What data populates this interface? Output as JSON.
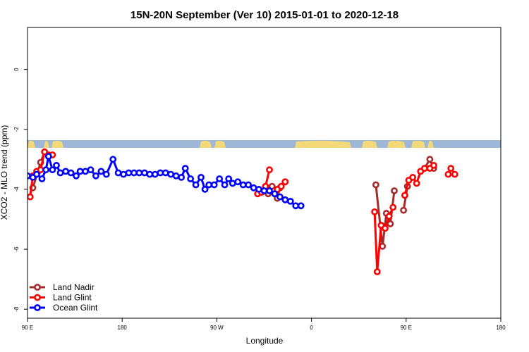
{
  "chart_data": {
    "type": "line",
    "title": "15N-20N September (Ver 10)   2015-01-01 to 2020-12-18",
    "xlabel": "Longitude",
    "ylabel": "XCO2 - MLO trend (ppm)",
    "xlim": [
      90,
      450
    ],
    "ylim": [
      -8.3,
      1.4
    ],
    "x_ticks": [
      {
        "value": 90,
        "label": "90 E"
      },
      {
        "value": 180,
        "label": "180"
      },
      {
        "value": 270,
        "label": "90 W"
      },
      {
        "value": 360,
        "label": "0"
      },
      {
        "value": 450,
        "label": "90 E"
      },
      {
        "value": 540,
        "label": "180"
      }
    ],
    "y_ticks": [
      {
        "value": 0,
        "label": "0"
      },
      {
        "value": -2,
        "label": "-2"
      },
      {
        "value": -4,
        "label": "-4"
      },
      {
        "value": -6,
        "label": "-6"
      },
      {
        "value": -8,
        "label": "-8"
      }
    ],
    "legend_position": "bottom-left",
    "grid": false,
    "series": [
      {
        "name": "Land Nadir",
        "color": "#a52a2a",
        "segments": [
          [
            [
              94,
              -3.95
            ],
            [
              98,
              -3.4
            ],
            [
              100,
              -3.1
            ],
            [
              103,
              -2.75
            ]
          ],
          [
            [
              273,
              -4.15
            ],
            [
              276,
              -3.9
            ]
          ],
          [
            [
              280,
              -4.3
            ],
            [
              282,
              -3.95
            ],
            [
              286,
              -3.75
            ]
          ],
          [
            [
              355,
              -3.85
            ],
            [
              360,
              -5.9
            ],
            [
              363,
              -4.8
            ],
            [
              366,
              -5.15
            ],
            [
              369,
              -4.05
            ]
          ],
          [
            [
              376,
              -4.7
            ],
            [
              379,
              -3.9
            ]
          ],
          [
            [
              392,
              -3.3
            ],
            [
              396,
              -3.0
            ],
            [
              399,
              -3.3
            ]
          ],
          [
            [
              462,
              -4.05
            ],
            [
              466,
              -4.45
            ],
            [
              469,
              -3.35
            ]
          ],
          [
            [
              478,
              -4.05
            ],
            [
              481,
              -3.45
            ],
            [
              484,
              -3.1
            ]
          ],
          [
            [
              492,
              -3.15
            ],
            [
              494,
              -3.3
            ]
          ]
        ]
      },
      {
        "name": "Land Glint",
        "color": "#ff0000",
        "segments": [
          [
            [
              92,
              -4.25
            ],
            [
              94,
              -3.55
            ],
            [
              97,
              -3.4
            ],
            [
              100,
              -3.35
            ],
            [
              103,
              -2.75
            ],
            [
              106,
              -2.85
            ],
            [
              109,
              -2.85
            ]
          ],
          [
            [
              265,
              -4.15
            ],
            [
              268,
              -4.1
            ],
            [
              271,
              -3.9
            ],
            [
              274,
              -3.35
            ]
          ],
          [
            [
              280,
              -4.0
            ],
            [
              283,
              -3.9
            ],
            [
              286,
              -3.75
            ]
          ],
          [
            [
              354,
              -4.75
            ],
            [
              356,
              -6.75
            ],
            [
              359,
              -5.2
            ],
            [
              362,
              -5.3
            ],
            [
              365,
              -4.9
            ],
            [
              368,
              -4.6
            ]
          ],
          [
            [
              377,
              -4.2
            ],
            [
              380,
              -3.7
            ],
            [
              383,
              -3.6
            ],
            [
              386,
              -3.8
            ],
            [
              389,
              -3.4
            ],
            [
              392,
              -3.3
            ]
          ],
          [
            [
              396,
              -3.3
            ],
            [
              399,
              -3.2
            ]
          ],
          [
            [
              410,
              -3.5
            ],
            [
              412,
              -3.3
            ],
            [
              415,
              -3.5
            ]
          ],
          [
            [
              474,
              -4.25
            ],
            [
              477,
              -3.6
            ],
            [
              480,
              -3.55
            ],
            [
              483,
              -3.4
            ],
            [
              486,
              -2.75
            ],
            [
              489,
              -2.9
            ]
          ],
          [
            [
              494,
              -3.15
            ],
            [
              496,
              -2.85
            ]
          ]
        ]
      },
      {
        "name": "Ocean Glint",
        "color": "#0000ff",
        "segments": [
          [
            [
              90,
              -3.55
            ],
            [
              94,
              -3.6
            ],
            [
              97,
              -3.5
            ],
            [
              101,
              -3.65
            ],
            [
              104,
              -3.35
            ],
            [
              106,
              -2.9
            ],
            [
              109,
              -3.35
            ],
            [
              112,
              -3.2
            ],
            [
              115,
              -3.45
            ],
            [
              119,
              -3.4
            ],
            [
              123,
              -3.45
            ],
            [
              127,
              -3.55
            ],
            [
              130,
              -3.4
            ],
            [
              134,
              -3.4
            ],
            [
              138,
              -3.35
            ],
            [
              142,
              -3.55
            ],
            [
              146,
              -3.4
            ],
            [
              150,
              -3.5
            ],
            [
              155,
              -3.0
            ],
            [
              159,
              -3.45
            ],
            [
              163,
              -3.5
            ],
            [
              167,
              -3.45
            ],
            [
              171,
              -3.45
            ],
            [
              175,
              -3.45
            ],
            [
              179,
              -3.45
            ],
            [
              183,
              -3.5
            ],
            [
              187,
              -3.5
            ],
            [
              191,
              -3.45
            ],
            [
              195,
              -3.45
            ],
            [
              199,
              -3.5
            ],
            [
              203,
              -3.55
            ],
            [
              207,
              -3.6
            ],
            [
              210,
              -3.3
            ],
            [
              214,
              -3.65
            ],
            [
              218,
              -3.85
            ],
            [
              222,
              -3.6
            ],
            [
              225,
              -4.0
            ],
            [
              228,
              -3.85
            ],
            [
              232,
              -3.85
            ],
            [
              236,
              -3.65
            ],
            [
              240,
              -3.85
            ],
            [
              243,
              -3.65
            ],
            [
              246,
              -3.8
            ],
            [
              250,
              -3.75
            ],
            [
              254,
              -3.85
            ],
            [
              258,
              -3.85
            ],
            [
              262,
              -3.95
            ],
            [
              266,
              -4.0
            ],
            [
              270,
              -4.05
            ],
            [
              274,
              -4.05
            ],
            [
              278,
              -4.15
            ],
            [
              282,
              -4.25
            ],
            [
              286,
              -4.35
            ],
            [
              290,
              -4.4
            ],
            [
              294,
              -4.55
            ],
            [
              298,
              -4.55
            ]
          ]
        ]
      }
    ]
  }
}
